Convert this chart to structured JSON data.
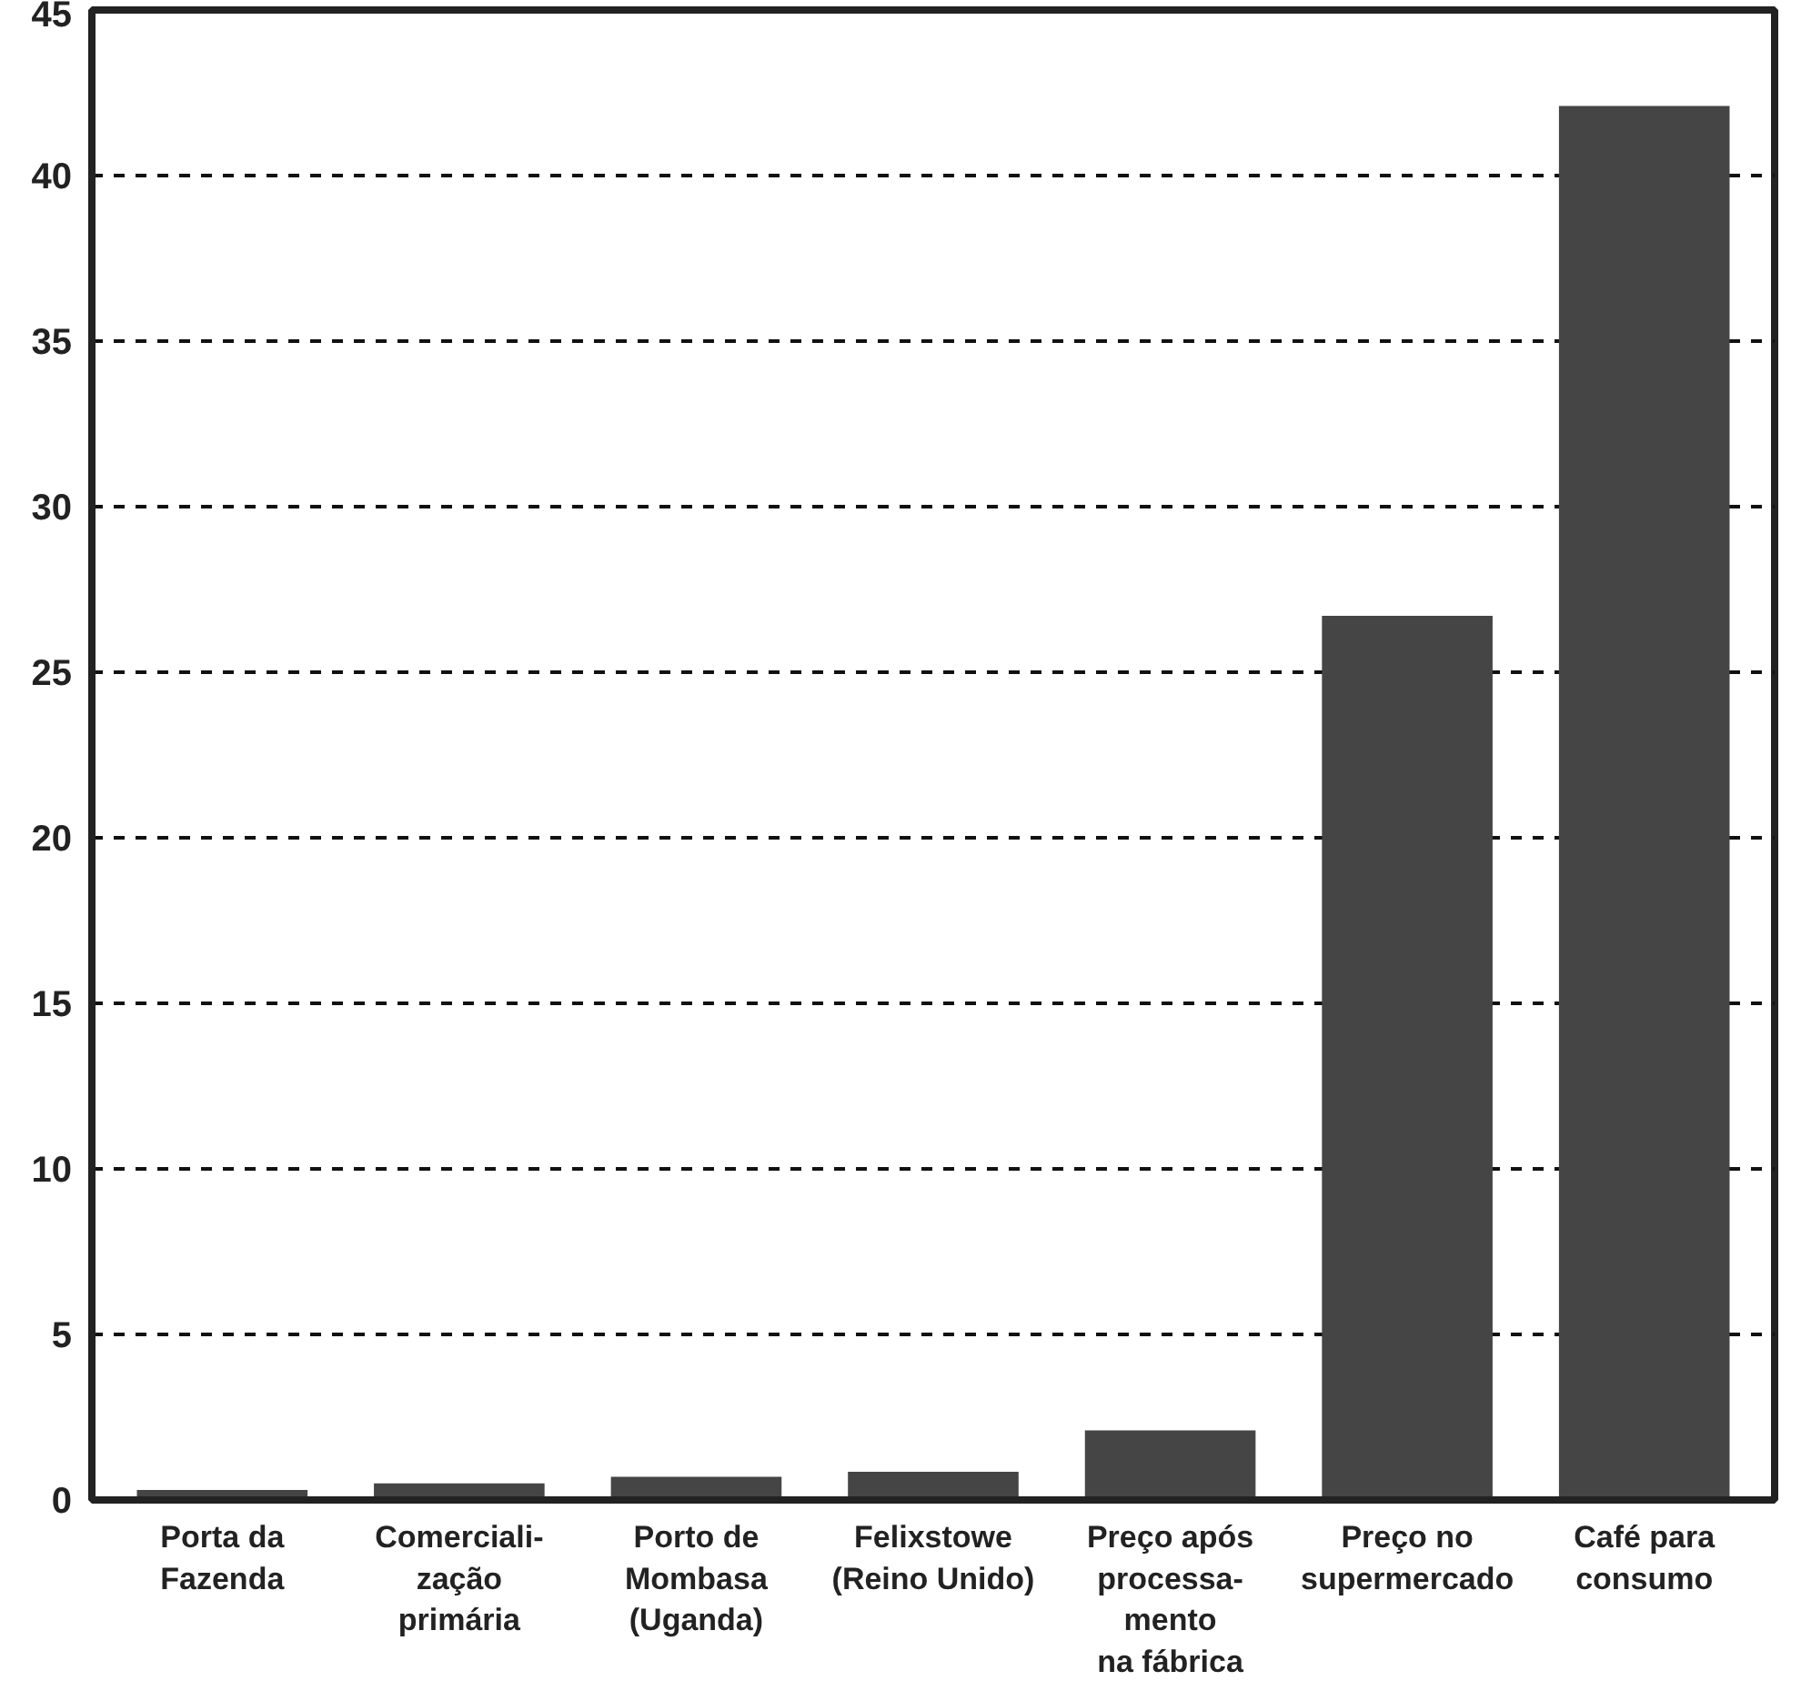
{
  "chart_data": {
    "type": "bar",
    "categories": [
      "Porta da\nFazenda",
      "Comerciali-\nzação\nprimária",
      "Porto de\nMombasa\n(Uganda)",
      "Felixstowe\n(Reino Unido)",
      "Preço após\nprocessa-\nmento\nna fábrica",
      "Preço no\nsupermercado",
      "Café para\nconsumo"
    ],
    "values": [
      0.3,
      0.5,
      0.7,
      0.85,
      2.1,
      26.7,
      42.1
    ],
    "color": "#454545",
    "ylim": [
      0,
      45
    ],
    "yticks": [
      0,
      5,
      10,
      15,
      20,
      25,
      30,
      35,
      40,
      45
    ],
    "grid": "y",
    "line_style": "dashed"
  }
}
